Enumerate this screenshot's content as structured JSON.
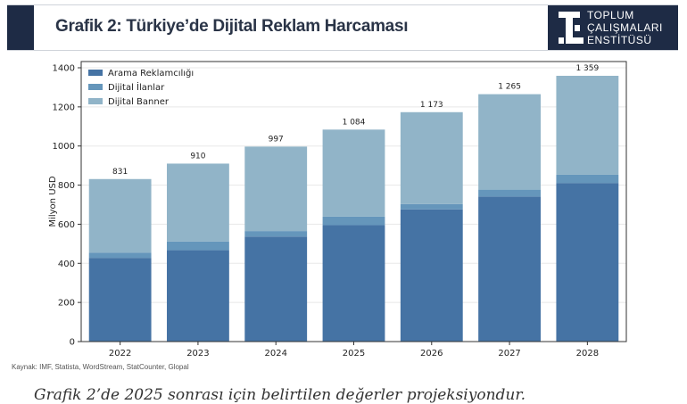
{
  "header": {
    "title": "Grafik 2: Türkiye’de Dijital Reklam Harcaması",
    "logo_lines": [
      "TOPLUM",
      "ÇALIŞMALARI",
      "ENSTİTÜSÜ"
    ]
  },
  "chart_data": {
    "type": "bar",
    "stacked": true,
    "title": "",
    "xlabel": "",
    "ylabel": "Milyon USD",
    "ylim": [
      0,
      1400
    ],
    "yticks": [
      0,
      200,
      400,
      600,
      800,
      1000,
      1200,
      1400
    ],
    "grid": true,
    "legend_position": "top-left",
    "categories": [
      "2022",
      "2023",
      "2024",
      "2025",
      "2026",
      "2027",
      "2028"
    ],
    "series": [
      {
        "name": "Arama Reklamcılığı",
        "color": "#4573a4",
        "values": [
          428,
          468,
          537,
          595,
          676,
          742,
          811
        ]
      },
      {
        "name": "Dijital İlanlar",
        "color": "#6596bb",
        "values": [
          26,
          44,
          28,
          44,
          27,
          35,
          42
        ]
      },
      {
        "name": "Dijital Banner",
        "color": "#91b4c8",
        "values": [
          377,
          398,
          432,
          445,
          470,
          488,
          506
        ]
      }
    ],
    "totals": [
      "831",
      "910",
      "997",
      "1 084",
      "1 173",
      "1 265",
      "1 359"
    ]
  },
  "source": "Kaynak: IMF, Statista, WordStream, StatCounter, Glopal",
  "caption": "Grafik 2’de 2025 sonrası için belirtilen değerler projeksiyondur."
}
